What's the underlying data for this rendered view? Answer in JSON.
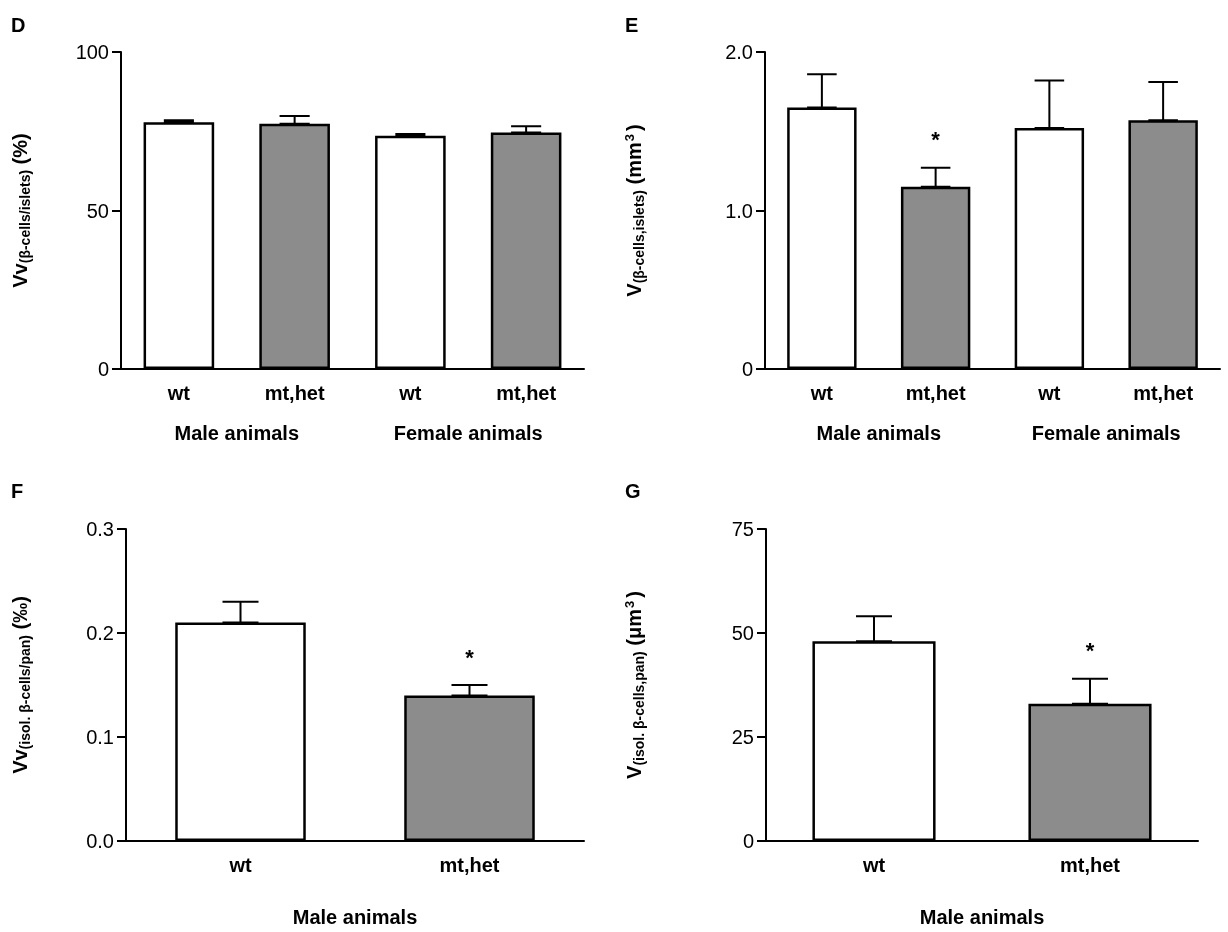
{
  "chart_data": [
    {
      "type": "bar",
      "title": "D",
      "ylabel": "Vv$_{(β-cells/islets)}$ (%)",
      "categories": [
        "wt",
        "mt,het",
        "wt",
        "mt,het"
      ],
      "values": [
        77.8,
        77.4,
        73.6,
        74.6
      ],
      "errors": [
        [
          77.8,
          78.5
        ],
        [
          77.4,
          79.8
        ],
        [
          73.6,
          74.1
        ],
        [
          74.6,
          76.6
        ]
      ],
      "colors": [
        "#ffffff",
        "#8c8c8c",
        "#ffffff",
        "#8c8c8c"
      ],
      "ylim": [
        0,
        100
      ],
      "yticks": [
        0,
        50,
        100
      ],
      "annotations": [
        "Male animals",
        "Female animals"
      ]
    },
    {
      "type": "bar",
      "title": "E",
      "ylabel": "V$_{(β-cells,islets)}$ (mm$^{3}$)",
      "categories": [
        "wt",
        "mt,het",
        "wt",
        "mt,het"
      ],
      "values": [
        1.65,
        1.15,
        1.52,
        1.57
      ],
      "errors": [
        [
          1.65,
          1.86
        ],
        [
          1.15,
          1.27
        ],
        [
          1.52,
          1.82
        ],
        [
          1.57,
          1.81
        ]
      ],
      "colors": [
        "#ffffff",
        "#8c8c8c",
        "#ffffff",
        "#8c8c8c"
      ],
      "ylim": [
        0,
        2
      ],
      "yticks": [
        0,
        {
          "value": 1,
          "label": "1.0"
        },
        {
          "value": 2,
          "label": "2.0"
        }
      ],
      "annotations": [
        "Male animals",
        "Female animals",
        {
          "text": "*",
          "x": "mt,het",
          "y": 1.15
        }
      ]
    },
    {
      "type": "bar",
      "title": "F",
      "ylabel": "Vv$_{(isol. β-cells/pan)}$ (‰)",
      "xlabel": "Male animals",
      "categories": [
        "wt",
        "mt,het"
      ],
      "values": [
        0.21,
        0.14
      ],
      "errors": [
        [
          0.21,
          0.23
        ],
        [
          0.14,
          0.15
        ]
      ],
      "colors": [
        "#ffffff",
        "#8c8c8c"
      ],
      "ylim": [
        0,
        0.3
      ],
      "yticks": [
        {
          "value": 0,
          "label": "0.0"
        },
        0.1,
        0.2,
        0.3
      ],
      "annotations": [
        {
          "text": "*",
          "x": "mt,het",
          "y": 0.14
        }
      ]
    },
    {
      "type": "bar",
      "title": "G",
      "ylabel": "V$_{(isol. β-cells,pan)}$ (μm$^{3}$)",
      "xlabel": "Male animals",
      "categories": [
        "wt",
        "mt,het"
      ],
      "values": [
        48,
        33
      ],
      "errors": [
        [
          48,
          54
        ],
        [
          33,
          39
        ]
      ],
      "colors": [
        "#ffffff",
        "#8c8c8c"
      ],
      "ylim": [
        0,
        75
      ],
      "yticks": [
        0,
        25,
        50,
        75
      ],
      "annotations": [
        {
          "text": "*",
          "x": "mt,het",
          "y": 33
        }
      ]
    }
  ]
}
